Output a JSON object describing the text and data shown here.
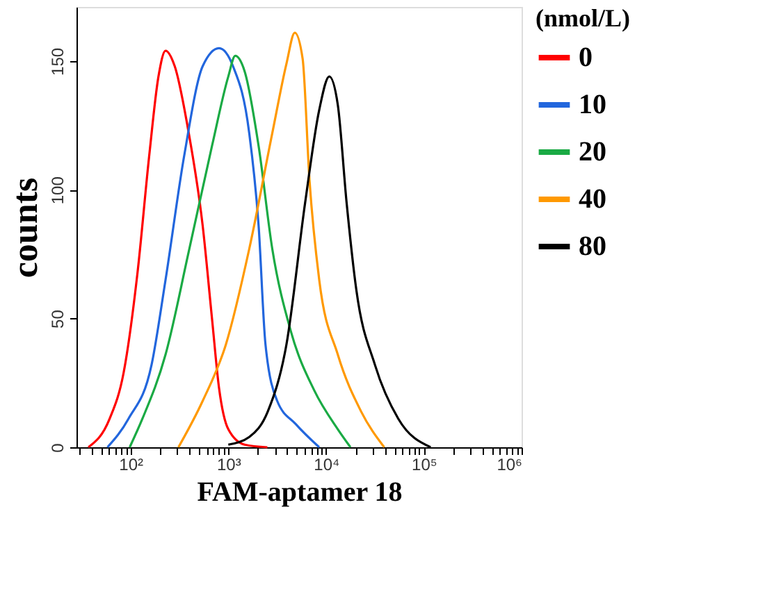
{
  "chart_data": {
    "type": "line",
    "xlabel": "FAM-aptamer 18",
    "ylabel": "counts",
    "legend_title": "(nmol/L)",
    "log": "x",
    "grid": false,
    "legend": "right",
    "marker": "none",
    "line_style": "solid",
    "xlim": [
      28,
      1000000
    ],
    "ylim": [
      0,
      171
    ],
    "yticks": [
      0,
      50,
      100,
      150
    ],
    "xticks": [
      {
        "value": 30,
        "label": null
      },
      {
        "value": 40,
        "label": null
      },
      {
        "value": 50,
        "label": null
      },
      {
        "value": 60,
        "label": null
      },
      {
        "value": 70,
        "label": null
      },
      {
        "value": 80,
        "label": null
      },
      {
        "value": 90,
        "label": null
      },
      {
        "value": 100,
        "label": "10²"
      },
      {
        "value": 200,
        "label": null
      },
      {
        "value": 300,
        "label": null
      },
      {
        "value": 400,
        "label": null
      },
      {
        "value": 500,
        "label": null
      },
      {
        "value": 600,
        "label": null
      },
      {
        "value": 700,
        "label": null
      },
      {
        "value": 800,
        "label": null
      },
      {
        "value": 900,
        "label": null
      },
      {
        "value": 1000,
        "label": "10³"
      },
      {
        "value": 2000,
        "label": null
      },
      {
        "value": 3000,
        "label": null
      },
      {
        "value": 4000,
        "label": null
      },
      {
        "value": 5000,
        "label": null
      },
      {
        "value": 6000,
        "label": null
      },
      {
        "value": 7000,
        "label": null
      },
      {
        "value": 8000,
        "label": null
      },
      {
        "value": 9000,
        "label": null
      },
      {
        "value": 10000,
        "label": "10⁴"
      },
      {
        "value": 20000,
        "label": null
      },
      {
        "value": 30000,
        "label": null
      },
      {
        "value": 40000,
        "label": null
      },
      {
        "value": 50000,
        "label": null
      },
      {
        "value": 60000,
        "label": null
      },
      {
        "value": 70000,
        "label": null
      },
      {
        "value": 80000,
        "label": null
      },
      {
        "value": 90000,
        "label": null
      },
      {
        "value": 100000,
        "label": "10⁵"
      },
      {
        "value": 200000,
        "label": null
      },
      {
        "value": 300000,
        "label": null
      },
      {
        "value": 400000,
        "label": null
      },
      {
        "value": 500000,
        "label": null
      },
      {
        "value": 600000,
        "label": null
      },
      {
        "value": 700000,
        "label": null
      },
      {
        "value": 800000,
        "label": null
      },
      {
        "value": 900000,
        "label": null
      },
      {
        "value": 1000000,
        "label": "10⁶"
      }
    ],
    "series": [
      {
        "name": "0",
        "color": "#ff0000",
        "x": [
          37,
          61,
          85,
          118,
          155,
          193,
          228,
          283,
          394,
          547,
          681,
          804,
          1000,
          1470,
          2510
        ],
        "values": [
          0,
          11,
          29,
          68,
          113,
          144,
          154,
          148,
          122,
          86,
          50,
          23,
          7,
          1,
          0
        ]
      },
      {
        "name": "10",
        "color": "#2266dd",
        "x": [
          58,
          95,
          164,
          228,
          353,
          547,
          804,
          1117,
          1637,
          2042,
          2399,
          3162,
          4898,
          8511
        ],
        "values": [
          0,
          11,
          32,
          65,
          113,
          148,
          155,
          148,
          122,
          86,
          40,
          18,
          9,
          0
        ]
      },
      {
        "name": "20",
        "color": "#1aaa44",
        "x": [
          98,
          132,
          228,
          394,
          681,
          1000,
          1178,
          1469,
          2042,
          2818,
          4365,
          7586,
          13183,
          17783
        ],
        "values": [
          0,
          11,
          36,
          76,
          117,
          144,
          152,
          146,
          117,
          77,
          45,
          22,
          7,
          0
        ]
      },
      {
        "name": "40",
        "color": "#ff9900",
        "x": [
          309,
          547,
          946,
          1637,
          2818,
          3936,
          4786,
          5754,
          6761,
          8511,
          13183,
          22750,
          39355
        ],
        "values": [
          0,
          18,
          40,
          77,
          122,
          149,
          161,
          151,
          104,
          65,
          36,
          14,
          0
        ]
      },
      {
        "name": "80",
        "color": "#000000",
        "x": [
          1000,
          1637,
          2541,
          3936,
          6109,
          8511,
          10789,
          13183,
          16218,
          20417,
          31623,
          54954,
          117490
        ],
        "values": [
          1,
          4,
          14,
          40,
          95,
          131,
          144,
          133,
          95,
          61,
          32,
          11,
          0
        ]
      }
    ]
  }
}
